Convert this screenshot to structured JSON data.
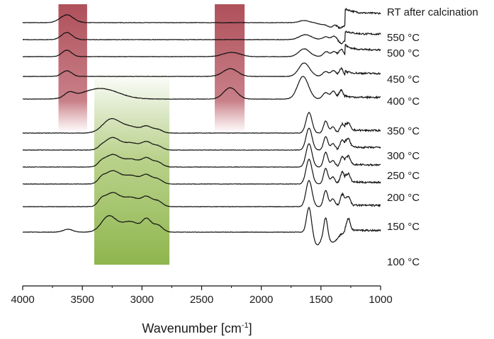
{
  "chart_data": {
    "type": "line",
    "title": "",
    "xlabel": "Wavenumber [cm",
    "xlabel_superscript": "-1",
    "xlabel_suffix": "]",
    "ylabel": "",
    "xlim": [
      4000,
      1000
    ],
    "x_reversed": true,
    "x_ticks": [
      "4000",
      "3500",
      "3000",
      "2500",
      "2000",
      "1500",
      "1000"
    ],
    "grid": false,
    "legend": "none (series labelled at right end of each trace)",
    "highlight_bands": [
      {
        "from": 3700,
        "to": 3460,
        "color": "#a63c48",
        "fade": "bottom"
      },
      {
        "from": 2390,
        "to": 2140,
        "color": "#a63c48",
        "fade": "bottom"
      },
      {
        "from": 3400,
        "to": 2770,
        "color": "#7aa82e",
        "fade": "top"
      }
    ],
    "series": [
      {
        "name": "RT after calcination",
        "group": "calcination",
        "offset": 0.93,
        "amp": 0.05,
        "peaks": [
          [
            3630,
            55,
            0.55
          ],
          [
            1640,
            40,
            0.15
          ],
          [
            1460,
            25,
            0.1
          ],
          [
            1420,
            60,
            -0.35
          ],
          [
            1385,
            15,
            0.15
          ],
          [
            1330,
            25,
            -0.25
          ]
        ],
        "step": [
          1300,
          1.1
        ],
        "noise_above": 1380
      },
      {
        "name": "550 °C",
        "group": "calcination",
        "offset": 0.87,
        "amp": 0.05,
        "peaks": [
          [
            3630,
            45,
            0.5
          ],
          [
            1630,
            50,
            0.35
          ],
          [
            1460,
            25,
            0.2
          ],
          [
            1390,
            20,
            0.25
          ],
          [
            1330,
            20,
            -0.25
          ]
        ],
        "step": [
          1300,
          0.65
        ],
        "noise_above": 1380
      },
      {
        "name": "500 °C",
        "group": "calcination",
        "offset": 0.81,
        "amp": 0.05,
        "peaks": [
          [
            3630,
            40,
            0.45
          ],
          [
            2250,
            70,
            0.3
          ],
          [
            1640,
            45,
            0.55
          ],
          [
            1455,
            25,
            0.35
          ],
          [
            1390,
            20,
            0.35
          ],
          [
            1330,
            18,
            0.55
          ]
        ],
        "step": [
          1300,
          0.8
        ],
        "noise_above": 1380
      },
      {
        "name": "450 °C",
        "group": "calcination",
        "offset": 0.74,
        "amp": 0.05,
        "peaks": [
          [
            3630,
            40,
            0.4
          ],
          [
            2260,
            60,
            0.55
          ],
          [
            1640,
            45,
            0.95
          ],
          [
            1460,
            25,
            0.35
          ],
          [
            1395,
            20,
            0.4
          ],
          [
            1330,
            18,
            0.55
          ]
        ],
        "step": [
          1300,
          0.35
        ],
        "noise_above": 1380
      },
      {
        "name": "400 °C",
        "group": "calcination",
        "offset": 0.66,
        "amp": 0.05,
        "peaks": [
          [
            3610,
            40,
            0.35
          ],
          [
            3350,
            150,
            0.75
          ],
          [
            2260,
            55,
            0.8
          ],
          [
            1650,
            45,
            1.6
          ],
          [
            1460,
            25,
            0.45
          ],
          [
            1395,
            20,
            0.55
          ],
          [
            1330,
            18,
            0.65
          ]
        ],
        "step": [
          1300,
          0.2
        ],
        "noise_above": 1380
      },
      {
        "name": "350 °C",
        "group": "thermal",
        "offset": 0.54,
        "amp": 0.05,
        "peaks": [
          [
            3260,
            70,
            0.95
          ],
          [
            3100,
            80,
            0.45
          ],
          [
            2960,
            40,
            0.4
          ],
          [
            2870,
            40,
            0.25
          ],
          [
            1600,
            25,
            1.45
          ],
          [
            1460,
            18,
            0.85
          ],
          [
            1400,
            18,
            0.45
          ],
          [
            1320,
            18,
            0.65
          ],
          [
            1270,
            15,
            0.45
          ]
        ],
        "step": [
          1300,
          0.3
        ],
        "noise_above": 1380
      },
      {
        "name": "300 °C",
        "group": "thermal",
        "offset": 0.48,
        "amp": 0.05,
        "peaks": [
          [
            3340,
            30,
            0.15
          ],
          [
            3250,
            60,
            0.85
          ],
          [
            3090,
            70,
            0.5
          ],
          [
            2960,
            40,
            0.5
          ],
          [
            2870,
            40,
            0.3
          ],
          [
            1600,
            25,
            1.55
          ],
          [
            1460,
            18,
            0.95
          ],
          [
            1400,
            18,
            0.45
          ],
          [
            1320,
            18,
            0.75
          ],
          [
            1270,
            15,
            0.55
          ]
        ],
        "step": [
          1300,
          0.3
        ],
        "noise_above": 1380
      },
      {
        "name": "250 °C",
        "group": "thermal",
        "offset": 0.42,
        "amp": 0.05,
        "peaks": [
          [
            3340,
            30,
            0.25
          ],
          [
            3250,
            60,
            0.85
          ],
          [
            3090,
            70,
            0.55
          ],
          [
            2960,
            40,
            0.55
          ],
          [
            2870,
            40,
            0.35
          ],
          [
            1600,
            25,
            1.65
          ],
          [
            1460,
            18,
            1.05
          ],
          [
            1400,
            18,
            0.45
          ],
          [
            1320,
            18,
            0.75
          ],
          [
            1270,
            15,
            0.55
          ]
        ],
        "step": [
          1300,
          0.25
        ],
        "noise_above": 1380
      },
      {
        "name": "200 °C",
        "group": "thermal",
        "offset": 0.36,
        "amp": 0.05,
        "peaks": [
          [
            3340,
            30,
            0.3
          ],
          [
            3250,
            60,
            0.9
          ],
          [
            3090,
            70,
            0.6
          ],
          [
            2960,
            40,
            0.55
          ],
          [
            2870,
            40,
            0.35
          ],
          [
            1600,
            25,
            1.75
          ],
          [
            1460,
            18,
            1.1
          ],
          [
            1400,
            18,
            0.5
          ],
          [
            1320,
            18,
            0.85
          ],
          [
            1270,
            15,
            0.55
          ]
        ],
        "step": [
          1300,
          0.2
        ],
        "noise_above": 1380
      },
      {
        "name": "150 °C",
        "group": "thermal",
        "offset": 0.28,
        "amp": 0.05,
        "peaks": [
          [
            3340,
            30,
            0.35
          ],
          [
            3250,
            60,
            0.95
          ],
          [
            3090,
            70,
            0.65
          ],
          [
            2960,
            40,
            0.6
          ],
          [
            2870,
            40,
            0.4
          ],
          [
            1600,
            25,
            1.85
          ],
          [
            1460,
            18,
            1.15
          ],
          [
            1400,
            18,
            0.55
          ],
          [
            1320,
            18,
            0.9
          ],
          [
            1270,
            15,
            0.6
          ]
        ],
        "step": [
          1300,
          0.15
        ],
        "noise_above": 1380
      },
      {
        "name": "100 °C",
        "group": "thermal",
        "offset": 0.19,
        "amp": 0.05,
        "peaks": [
          [
            3620,
            40,
            0.2
          ],
          [
            3280,
            60,
            1.1
          ],
          [
            3100,
            80,
            0.75
          ],
          [
            2960,
            35,
            0.8
          ],
          [
            2870,
            40,
            0.5
          ],
          [
            1600,
            20,
            1.8
          ],
          [
            1530,
            30,
            -0.9
          ],
          [
            1460,
            15,
            1.3
          ],
          [
            1400,
            40,
            -0.7
          ],
          [
            1270,
            15,
            0.8
          ]
        ],
        "step": [
          1300,
          0.2
        ],
        "noise_above": 1380
      }
    ]
  }
}
